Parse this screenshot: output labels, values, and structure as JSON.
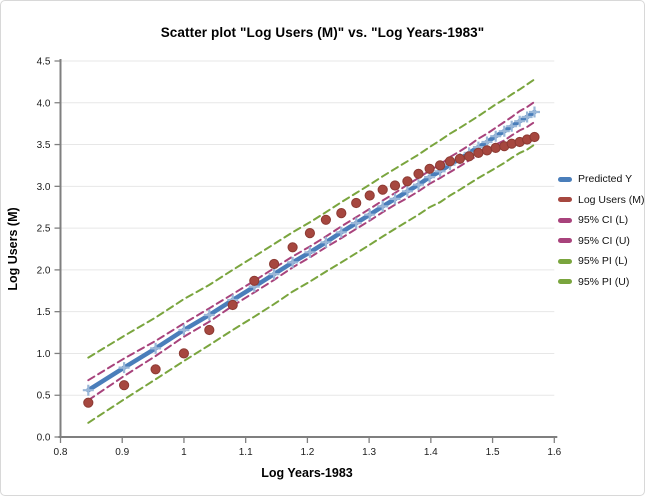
{
  "window": {
    "background": "#ffffff",
    "border_color": "#d8d8d8"
  },
  "chart_data": {
    "type": "scatter",
    "title": "Scatter plot \"Log Users (M)\" vs. \"Log Years-1983\"",
    "xlabel": "Log Years-1983",
    "ylabel": "Log Users (M)",
    "xlim": [
      0.8,
      1.6
    ],
    "ylim": [
      0.0,
      4.5
    ],
    "grid": "horizontal",
    "grid_color": "#e7e7e7",
    "axis_color": "#7f7f7f",
    "tick_label_color": "#1c1c1c",
    "legend_position": "right",
    "x_ticks": [
      0.8,
      0.9,
      1.0,
      1.1,
      1.2,
      1.3,
      1.4,
      1.5,
      1.6
    ],
    "x_tick_labels": [
      "0.8",
      "0.9",
      "1",
      "1.1",
      "1.2",
      "1.3",
      "1.4",
      "1.5",
      "1.6"
    ],
    "y_ticks": [
      0.0,
      0.5,
      1.0,
      1.5,
      2.0,
      2.5,
      3.0,
      3.5,
      4.0,
      4.5
    ],
    "y_tick_labels": [
      "0.0",
      "0.5",
      "1.0",
      "1.5",
      "2.0",
      "2.5",
      "3.0",
      "3.5",
      "4.0",
      "4.5"
    ],
    "x": [
      0.845,
      0.903,
      0.954,
      1.0,
      1.041,
      1.079,
      1.114,
      1.146,
      1.176,
      1.204,
      1.23,
      1.255,
      1.279,
      1.301,
      1.322,
      1.342,
      1.362,
      1.38,
      1.398,
      1.415,
      1.431,
      1.447,
      1.462,
      1.477,
      1.491,
      1.505,
      1.519,
      1.531,
      1.544,
      1.556,
      1.568
    ],
    "series": [
      {
        "name": "Predicted Y",
        "role": "predicted",
        "style": "line-plus-markers",
        "color": "#4a7eba",
        "marker_color": "#9ab7d8",
        "values": [
          0.56,
          0.83,
          1.06,
          1.28,
          1.46,
          1.64,
          1.8,
          1.95,
          2.09,
          2.21,
          2.33,
          2.45,
          2.56,
          2.66,
          2.76,
          2.85,
          2.94,
          3.02,
          3.11,
          3.18,
          3.26,
          3.33,
          3.4,
          3.47,
          3.53,
          3.6,
          3.66,
          3.72,
          3.78,
          3.83,
          3.89
        ]
      },
      {
        "name": "Log Users (M)",
        "role": "observed",
        "style": "dots",
        "color": "#a6473f",
        "edge_color": "#8c3a33",
        "values": [
          0.41,
          0.62,
          0.81,
          1.0,
          1.28,
          1.58,
          1.87,
          2.07,
          2.27,
          2.44,
          2.6,
          2.68,
          2.8,
          2.89,
          2.96,
          3.01,
          3.06,
          3.15,
          3.21,
          3.25,
          3.3,
          3.33,
          3.36,
          3.4,
          3.43,
          3.46,
          3.48,
          3.51,
          3.53,
          3.56,
          3.59
        ]
      },
      {
        "name": "95% CI (L)",
        "role": "ci_lower",
        "style": "dashed",
        "color": "#a8437c",
        "values": [
          0.44,
          0.73,
          0.97,
          1.2,
          1.38,
          1.57,
          1.73,
          1.88,
          2.03,
          2.15,
          2.27,
          2.38,
          2.49,
          2.59,
          2.69,
          2.78,
          2.86,
          2.94,
          3.03,
          3.1,
          3.17,
          3.24,
          3.31,
          3.37,
          3.43,
          3.5,
          3.55,
          3.61,
          3.67,
          3.71,
          3.77
        ]
      },
      {
        "name": "95% CI (U)",
        "role": "ci_upper",
        "style": "dashed",
        "color": "#a8437c",
        "values": [
          0.68,
          0.94,
          1.15,
          1.36,
          1.54,
          1.71,
          1.87,
          2.02,
          2.16,
          2.28,
          2.4,
          2.52,
          2.63,
          2.73,
          2.83,
          2.92,
          3.02,
          3.1,
          3.19,
          3.26,
          3.35,
          3.42,
          3.49,
          3.57,
          3.63,
          3.7,
          3.77,
          3.83,
          3.9,
          3.95,
          4.01
        ]
      },
      {
        "name": "95% PI (L)",
        "role": "pi_lower",
        "style": "dashed",
        "color": "#7aa53e",
        "values": [
          0.17,
          0.45,
          0.69,
          0.91,
          1.1,
          1.28,
          1.44,
          1.59,
          1.74,
          1.86,
          1.98,
          2.09,
          2.2,
          2.3,
          2.4,
          2.49,
          2.58,
          2.66,
          2.75,
          2.81,
          2.89,
          2.96,
          3.03,
          3.1,
          3.16,
          3.22,
          3.28,
          3.34,
          3.4,
          3.44,
          3.5
        ]
      },
      {
        "name": "95% PI (U)",
        "role": "pi_upper",
        "style": "dashed",
        "color": "#7aa53e",
        "values": [
          0.95,
          1.21,
          1.43,
          1.65,
          1.82,
          2.0,
          2.16,
          2.31,
          2.45,
          2.57,
          2.69,
          2.81,
          2.92,
          3.02,
          3.12,
          3.21,
          3.3,
          3.38,
          3.47,
          3.55,
          3.63,
          3.7,
          3.77,
          3.84,
          3.91,
          3.98,
          4.04,
          4.1,
          4.16,
          4.22,
          4.28
        ]
      }
    ]
  }
}
